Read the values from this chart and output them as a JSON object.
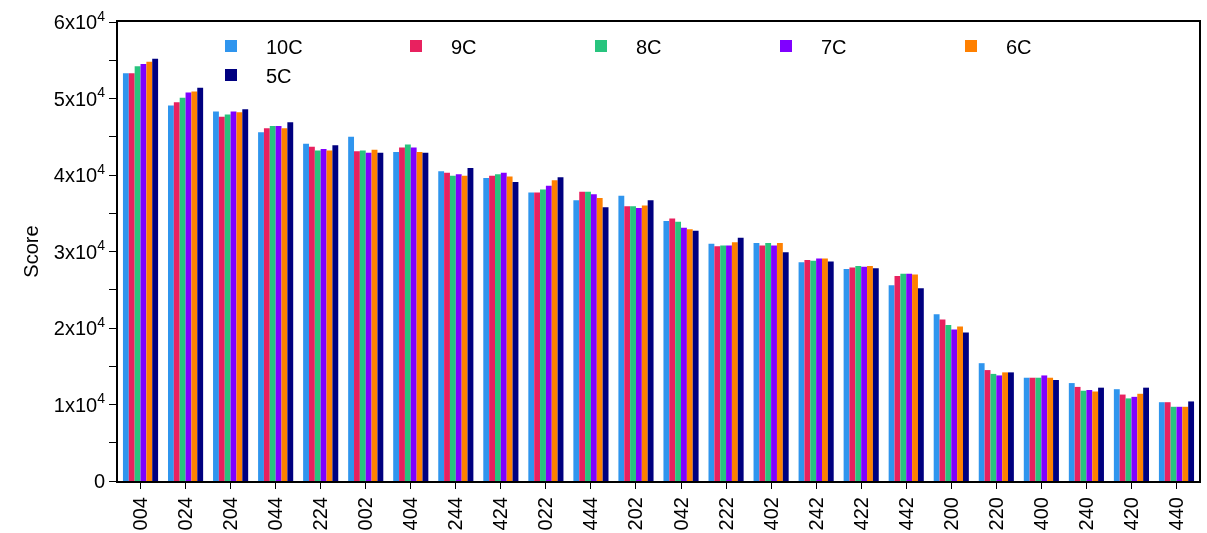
{
  "chart_data": {
    "type": "bar",
    "ylabel": "Score",
    "categories": [
      "004",
      "024",
      "204",
      "044",
      "224",
      "002",
      "404",
      "244",
      "424",
      "022",
      "444",
      "202",
      "042",
      "222",
      "402",
      "242",
      "422",
      "442",
      "200",
      "220",
      "400",
      "240",
      "420",
      "440"
    ],
    "series": [
      {
        "name": "10C",
        "color": "#2f95ee",
        "values": [
          53300,
          49100,
          48300,
          45600,
          44100,
          45000,
          43000,
          40500,
          39600,
          37700,
          36700,
          37300,
          34000,
          31000,
          31100,
          28600,
          27700,
          25600,
          21800,
          15400,
          13500,
          12800,
          12000,
          10300
        ]
      },
      {
        "name": "9C",
        "color": "#e8215f",
        "values": [
          53300,
          49500,
          47600,
          46100,
          43700,
          43100,
          43600,
          40300,
          39900,
          37700,
          37800,
          35900,
          34300,
          30700,
          30800,
          28900,
          27900,
          26800,
          21100,
          14500,
          13500,
          12300,
          11300,
          10300
        ]
      },
      {
        "name": "8C",
        "color": "#28c47e",
        "values": [
          54200,
          50100,
          47900,
          46400,
          43200,
          43200,
          44000,
          39900,
          40100,
          38100,
          37800,
          35900,
          33900,
          30800,
          31100,
          28800,
          28100,
          27100,
          20400,
          14000,
          13500,
          11800,
          10800,
          9700
        ]
      },
      {
        "name": "7C",
        "color": "#8000ff",
        "values": [
          54500,
          50800,
          48300,
          46400,
          43400,
          42900,
          43600,
          40100,
          40300,
          38600,
          37500,
          35700,
          33100,
          30800,
          30800,
          29100,
          28000,
          27100,
          19800,
          13800,
          13800,
          11900,
          11000,
          9700
        ]
      },
      {
        "name": "6C",
        "color": "#ff8000",
        "values": [
          54800,
          50900,
          48200,
          46100,
          43200,
          43300,
          43000,
          39900,
          39800,
          39300,
          37000,
          36000,
          32900,
          31200,
          31100,
          29100,
          28100,
          27000,
          20200,
          14200,
          13500,
          11700,
          11400,
          9700
        ]
      },
      {
        "name": "5C",
        "color": "#000080",
        "values": [
          55200,
          51400,
          48600,
          46900,
          43900,
          42900,
          42900,
          40900,
          39100,
          39700,
          35800,
          36700,
          32700,
          31800,
          29900,
          28700,
          27800,
          25200,
          19400,
          14200,
          13200,
          12200,
          12200,
          10400
        ]
      }
    ],
    "ylim": [
      0,
      60000
    ],
    "yticks": [
      {
        "value": 0,
        "label": "0"
      },
      {
        "value": 5000,
        "label": null
      },
      {
        "value": 10000,
        "label": "1x10$^{4}$"
      },
      {
        "value": 15000,
        "label": null
      },
      {
        "value": 20000,
        "label": "2x10$^{4}$"
      },
      {
        "value": 25000,
        "label": null
      },
      {
        "value": 30000,
        "label": "3x10$^{4}$"
      },
      {
        "value": 35000,
        "label": null
      },
      {
        "value": 40000,
        "label": "4x10$^{4}$"
      },
      {
        "value": 45000,
        "label": null
      },
      {
        "value": 50000,
        "label": "5x10$^{4}$"
      },
      {
        "value": 55000,
        "label": null
      },
      {
        "value": 60000,
        "label": "6x10$^{4}$"
      }
    ],
    "grid": false,
    "legend": "top"
  }
}
